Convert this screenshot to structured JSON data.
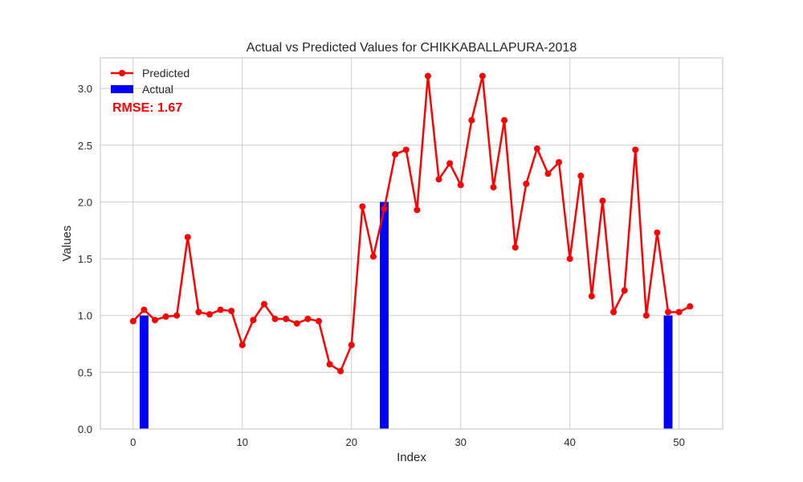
{
  "chart_data": {
    "type": "line",
    "title": "Actual vs Predicted Values for CHIKKABALLAPURA-2018",
    "xlabel": "Index",
    "ylabel": "Values",
    "xlim": [
      -3,
      54
    ],
    "ylim": [
      0,
      3.27
    ],
    "xticks": [
      0,
      10,
      20,
      30,
      40,
      50
    ],
    "yticks": [
      0.0,
      0.5,
      1.0,
      1.5,
      2.0,
      2.5,
      3.0
    ],
    "xtick_labels": [
      "0",
      "10",
      "20",
      "30",
      "40",
      "50"
    ],
    "ytick_labels": [
      "0.0",
      "0.5",
      "1.0",
      "1.5",
      "2.0",
      "2.5",
      "3.0"
    ],
    "grid": true,
    "legend": "upper-left",
    "annotation": "RMSE: 1.67",
    "series": [
      {
        "name": "Predicted",
        "kind": "line",
        "color": "#ff0000",
        "x": [
          0,
          1,
          2,
          3,
          4,
          5,
          6,
          7,
          8,
          9,
          10,
          11,
          12,
          13,
          14,
          15,
          16,
          17,
          18,
          19,
          20,
          21,
          22,
          23,
          24,
          25,
          26,
          27,
          28,
          29,
          30,
          31,
          32,
          33,
          34,
          35,
          36,
          37,
          38,
          39,
          40,
          41,
          42,
          43,
          44,
          45,
          46,
          47,
          48,
          49,
          50,
          51
        ],
        "values": [
          0.95,
          1.05,
          0.96,
          0.99,
          1.0,
          1.69,
          1.03,
          1.01,
          1.05,
          1.04,
          0.74,
          0.96,
          1.1,
          0.97,
          0.97,
          0.93,
          0.97,
          0.95,
          0.57,
          0.51,
          0.74,
          1.96,
          1.52,
          1.94,
          2.42,
          2.46,
          1.93,
          3.11,
          2.2,
          2.34,
          2.15,
          2.72,
          3.11,
          2.13,
          2.72,
          1.6,
          2.16,
          2.47,
          2.25,
          2.35,
          1.5,
          2.23,
          1.17,
          2.01,
          1.03,
          1.22,
          2.46,
          1.0,
          1.73,
          1.03,
          1.03,
          1.08
        ]
      },
      {
        "name": "Actual",
        "kind": "bar",
        "color": "#0000ff",
        "x": [
          1,
          23,
          49
        ],
        "values": [
          1.0,
          2.0,
          1.0
        ]
      }
    ]
  }
}
